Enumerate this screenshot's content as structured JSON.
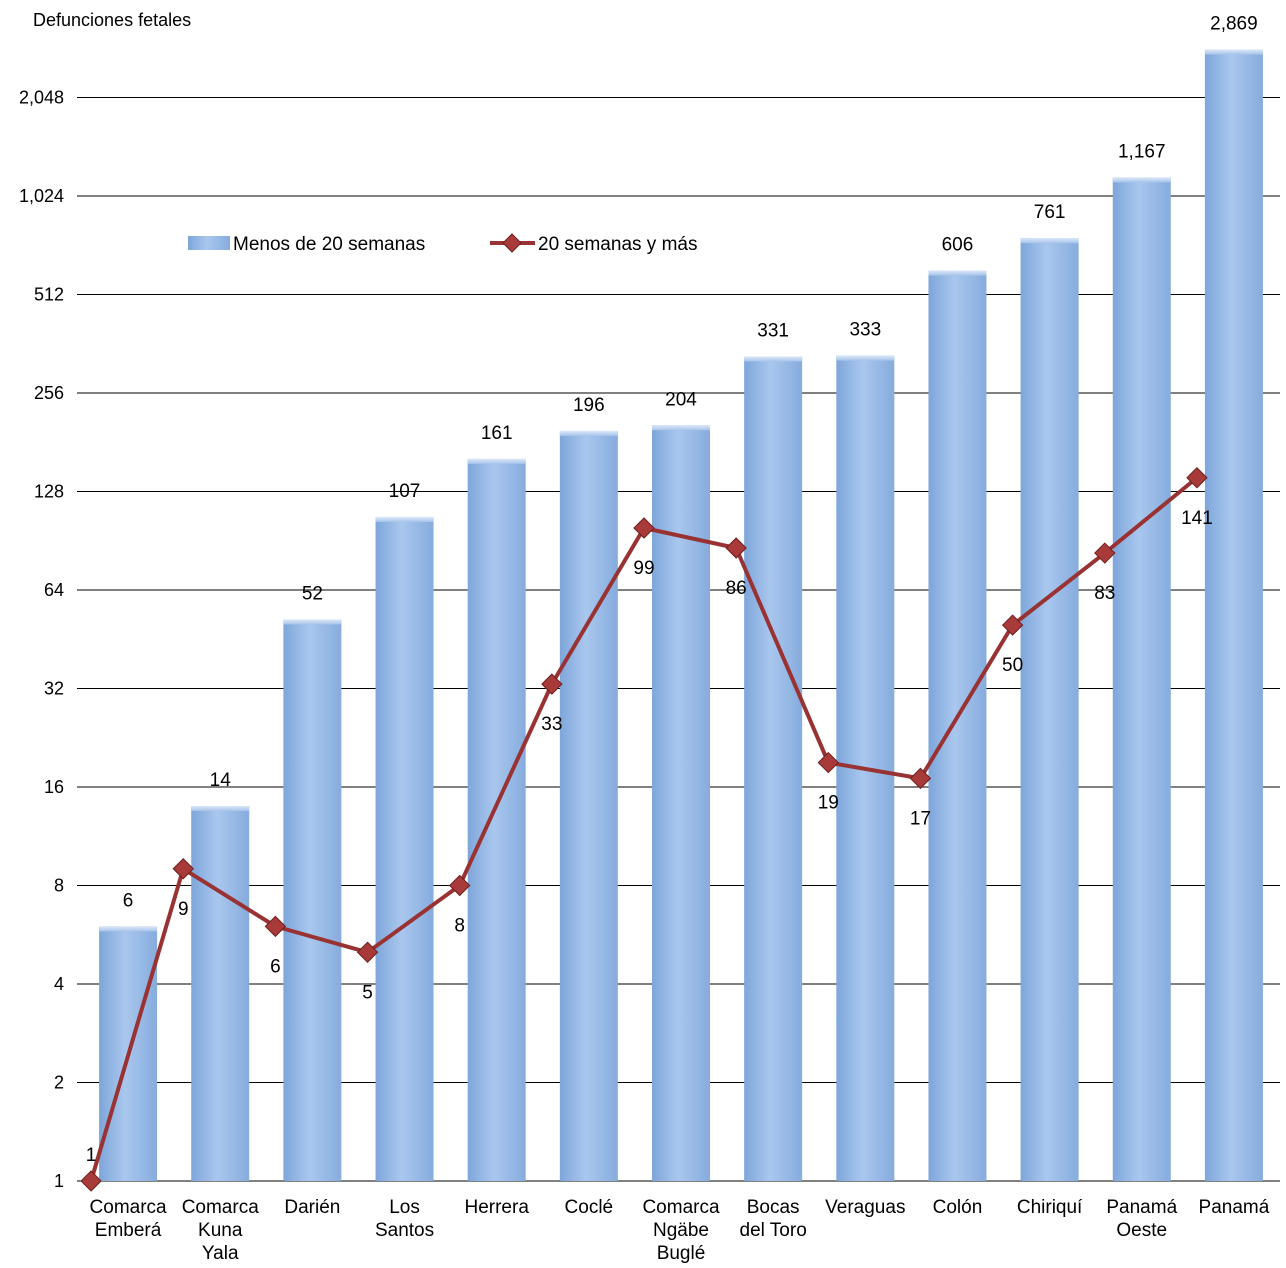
{
  "chart_data": {
    "type": "bar",
    "ylabel": "Defunciones fetales",
    "yscale": "log2",
    "ylim": [
      1,
      2869
    ],
    "yticks": [
      1,
      2,
      4,
      8,
      16,
      32,
      64,
      128,
      256,
      512,
      1024,
      2048
    ],
    "ytick_labels": [
      "1",
      "2",
      "4",
      "8",
      "16",
      "32",
      "64",
      "128",
      "256",
      "512",
      "1,024",
      "2,048"
    ],
    "grid": true,
    "legend_position": "top-left",
    "categories": [
      [
        "Comarca",
        "Emberá"
      ],
      [
        "Comarca",
        "Kuna",
        "Yala"
      ],
      [
        "Darién"
      ],
      [
        "Los",
        "Santos"
      ],
      [
        "Herrera"
      ],
      [
        "Coclé"
      ],
      [
        "Comarca",
        "Ngäbe",
        "Buglé"
      ],
      [
        "Bocas",
        "del Toro"
      ],
      [
        "Veraguas"
      ],
      [
        "Colón"
      ],
      [
        "Chiriquí"
      ],
      [
        "Panamá",
        "Oeste"
      ],
      [
        "Panamá"
      ]
    ],
    "series": [
      {
        "name": "Menos de 20 semanas",
        "type": "bar",
        "color": "#8fb4e3",
        "values": [
          6,
          14,
          52,
          107,
          161,
          196,
          204,
          331,
          333,
          606,
          761,
          1167,
          2869
        ],
        "labels": [
          "6",
          "14",
          "52",
          "107",
          "161",
          "196",
          "204",
          "331",
          "333",
          "606",
          "761",
          "1,167",
          "2,869"
        ]
      },
      {
        "name": "20 semanas y más",
        "type": "line",
        "color": "#993333",
        "values": [
          1,
          9,
          6,
          5,
          8,
          33,
          99,
          86,
          19,
          17,
          50,
          83,
          141
        ],
        "labels": [
          "1",
          "9",
          "6",
          "5",
          "8",
          "33",
          "99",
          "86",
          "19",
          "17",
          "50",
          "83",
          "141"
        ]
      }
    ]
  }
}
